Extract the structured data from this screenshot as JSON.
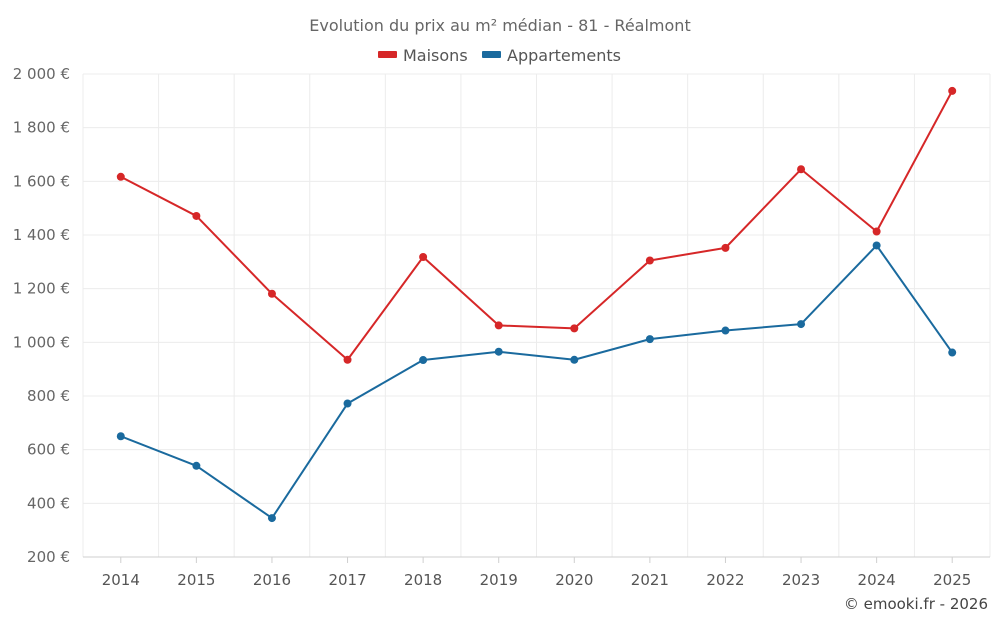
{
  "chart_data": {
    "type": "line",
    "title": "Evolution du prix au m² médian - 81 - Réalmont",
    "categories": [
      "2014",
      "2015",
      "2016",
      "2017",
      "2018",
      "2019",
      "2020",
      "2021",
      "2022",
      "2023",
      "2024",
      "2025"
    ],
    "series": [
      {
        "name": "Maisons",
        "color": "#d62728",
        "values": [
          1617,
          1471,
          1181,
          935,
          1318,
          1063,
          1052,
          1305,
          1352,
          1645,
          1413,
          1937
        ]
      },
      {
        "name": "Appartements",
        "color": "#1a6a9e",
        "values": [
          650,
          540,
          345,
          772,
          934,
          965,
          935,
          1012,
          1044,
          1068,
          1361,
          962
        ]
      }
    ],
    "ylim": [
      200,
      2000
    ],
    "yticks": [
      200,
      400,
      600,
      800,
      1000,
      1200,
      1400,
      1600,
      1800,
      2000
    ],
    "ytick_labels": [
      "200 €",
      "400 €",
      "600 €",
      "800 €",
      "1 000 €",
      "1 200 €",
      "1 400 €",
      "1 600 €",
      "1 800 €",
      "2 000 €"
    ],
    "xlabel": "",
    "ylabel": "",
    "grid": true,
    "legend": "top-center"
  },
  "credit": "© emooki.fr - 2026"
}
